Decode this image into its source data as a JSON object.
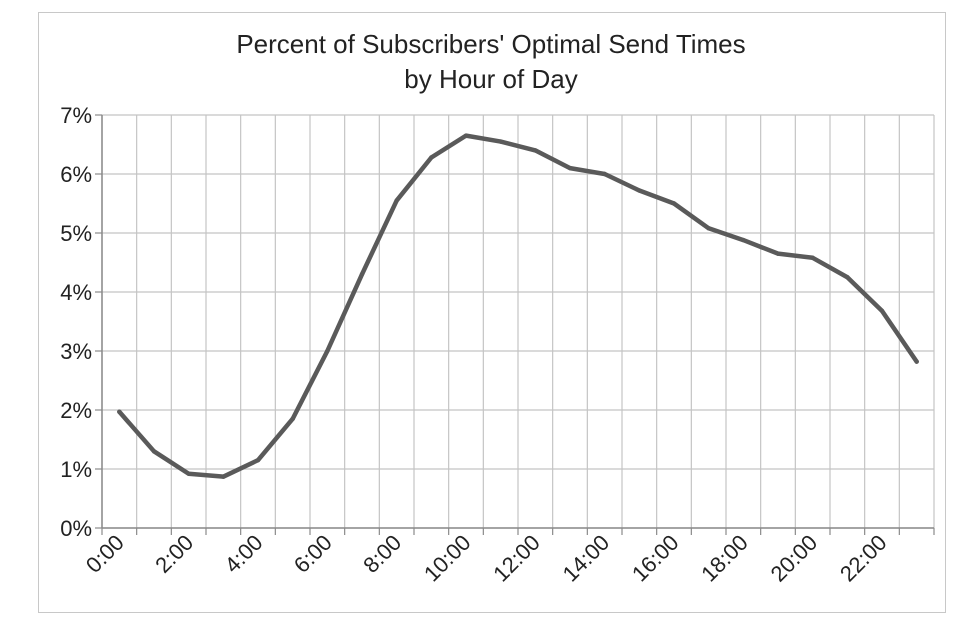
{
  "chart_data": {
    "type": "line",
    "title_lines": [
      "Percent of Subscribers' Optimal Send Times",
      "by Hour of Day"
    ],
    "xlabel": "",
    "ylabel": "",
    "ylim": [
      0,
      7
    ],
    "yticks": [
      0,
      1,
      2,
      3,
      4,
      5,
      6,
      7
    ],
    "ytick_labels": [
      "0%",
      "1%",
      "2%",
      "3%",
      "4%",
      "5%",
      "6%",
      "7%"
    ],
    "xtick_labels": [
      "0:00",
      "2:00",
      "4:00",
      "6:00",
      "8:00",
      "10:00",
      "12:00",
      "14:00",
      "16:00",
      "18:00",
      "20:00",
      "22:00"
    ],
    "grid": true,
    "categories": [
      "0:00",
      "1:00",
      "2:00",
      "3:00",
      "4:00",
      "5:00",
      "6:00",
      "7:00",
      "8:00",
      "9:00",
      "10:00",
      "11:00",
      "12:00",
      "13:00",
      "14:00",
      "15:00",
      "16:00",
      "17:00",
      "18:00",
      "19:00",
      "20:00",
      "21:00",
      "22:00",
      "23:00"
    ],
    "series": [
      {
        "values": [
          1.97,
          1.3,
          0.92,
          0.87,
          1.15,
          1.85,
          3.0,
          4.3,
          5.55,
          6.28,
          6.65,
          6.55,
          6.4,
          6.1,
          6.0,
          5.72,
          5.5,
          5.08,
          4.88,
          4.65,
          4.58,
          4.25,
          3.68,
          2.82
        ],
        "color": "#5a5a5a"
      }
    ]
  }
}
